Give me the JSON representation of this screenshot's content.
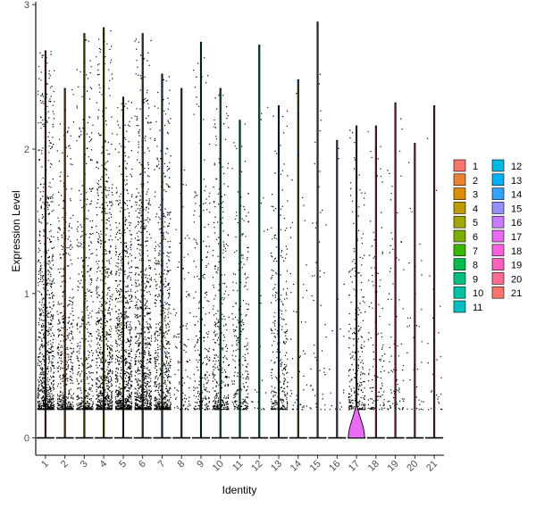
{
  "chart_data": {
    "type": "violin",
    "xlabel": "Identity",
    "ylabel": "Expression Level",
    "ylim": [
      -0.12,
      3.02
    ],
    "yticks": [
      0,
      1,
      2,
      3
    ],
    "categories": [
      "1",
      "2",
      "3",
      "4",
      "5",
      "6",
      "7",
      "8",
      "9",
      "10",
      "11",
      "12",
      "13",
      "14",
      "15",
      "16",
      "17",
      "18",
      "19",
      "20",
      "21"
    ],
    "colors": [
      "#F8766D",
      "#EA8331",
      "#D89000",
      "#C09B00",
      "#A3A500",
      "#7CAE00",
      "#39B600",
      "#00BB4E",
      "#00BF7D",
      "#00C1A3",
      "#00BFC4",
      "#00BAE0",
      "#00B0F6",
      "#35A2FF",
      "#9590FF",
      "#C77CFF",
      "#E76BF3",
      "#FA62DB",
      "#FF62BC",
      "#FF6C91",
      "#F8766D"
    ],
    "max_expression": [
      2.68,
      2.42,
      2.8,
      2.84,
      2.36,
      2.8,
      2.52,
      2.42,
      2.74,
      2.42,
      2.2,
      2.72,
      2.3,
      2.48,
      2.88,
      2.06,
      2.16,
      2.16,
      2.32,
      2.04,
      2.3
    ],
    "relative_point_density": [
      1.0,
      0.55,
      0.5,
      0.9,
      0.95,
      0.9,
      0.75,
      0.12,
      0.28,
      0.4,
      0.3,
      0.03,
      0.35,
      0.06,
      0.06,
      0.02,
      0.3,
      0.14,
      0.1,
      0.04,
      0.03
    ],
    "legend": {
      "placement": "right",
      "columns": [
        [
          "1",
          "2",
          "3",
          "4",
          "5",
          "6",
          "7",
          "8",
          "9",
          "10",
          "11"
        ],
        [
          "12",
          "13",
          "14",
          "15",
          "16",
          "17",
          "18",
          "19",
          "20",
          "21"
        ]
      ]
    }
  }
}
